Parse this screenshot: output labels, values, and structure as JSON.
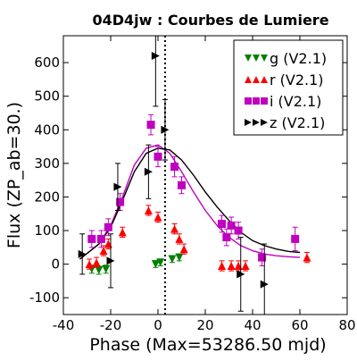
{
  "chart_data": {
    "type": "scatter",
    "title": "04D4jw : Courbes de Lumiere",
    "xlabel": "Phase (Max=53286.50 mjd)",
    "ylabel": "Flux (ZP_ab=30.)",
    "xlim": [
      -40,
      80
    ],
    "ylim": [
      -150,
      680
    ],
    "xticks": [
      -40,
      -20,
      0,
      20,
      40,
      60,
      80
    ],
    "yticks": [
      -100,
      0,
      100,
      200,
      300,
      400,
      500,
      600
    ],
    "xtick_labels": [
      "-40",
      "-20",
      "0",
      "20",
      "40",
      "60",
      "80"
    ],
    "ytick_labels": [
      "-100",
      "0",
      "100",
      "200",
      "300",
      "400",
      "500",
      "600"
    ],
    "grid": false,
    "legend_position": "top-right",
    "max_phase_line_x": 3,
    "series": [
      {
        "name": "g (V2.1)",
        "color": "#008000",
        "marker": "triangle-down",
        "points": [
          {
            "x": -28,
            "y": -15,
            "err": 12
          },
          {
            "x": -25,
            "y": -18,
            "err": 12
          },
          {
            "x": -22,
            "y": -15,
            "err": 12
          },
          {
            "x": -1,
            "y": 0,
            "err": 10
          },
          {
            "x": 1,
            "y": 5,
            "err": 10
          },
          {
            "x": 6,
            "y": 15,
            "err": 10
          },
          {
            "x": 9,
            "y": 20,
            "err": 10
          }
        ]
      },
      {
        "name": "r (V2.1)",
        "color": "#ff0000",
        "marker": "triangle-up",
        "points": [
          {
            "x": -29,
            "y": 0,
            "err": 15
          },
          {
            "x": -26,
            "y": 5,
            "err": 15
          },
          {
            "x": -23,
            "y": 40,
            "err": 15
          },
          {
            "x": -21,
            "y": 60,
            "err": 15
          },
          {
            "x": -15,
            "y": 95,
            "err": 15
          },
          {
            "x": -4,
            "y": 160,
            "err": 15
          },
          {
            "x": 0,
            "y": 140,
            "err": 15
          },
          {
            "x": 7,
            "y": 105,
            "err": 15
          },
          {
            "x": 9,
            "y": 75,
            "err": 15
          },
          {
            "x": 11,
            "y": 45,
            "err": 15
          },
          {
            "x": 27,
            "y": -5,
            "err": 15
          },
          {
            "x": 31,
            "y": -5,
            "err": 15
          },
          {
            "x": 34,
            "y": -5,
            "err": 15
          },
          {
            "x": 37,
            "y": -5,
            "err": 15
          },
          {
            "x": 63,
            "y": 20,
            "err": 15
          }
        ]
      },
      {
        "name": "i (V2.1)",
        "color": "#bf00bf",
        "marker": "square",
        "points": [
          {
            "x": -28,
            "y": 75,
            "err": 25
          },
          {
            "x": -24,
            "y": 75,
            "err": 25
          },
          {
            "x": -21,
            "y": 110,
            "err": 25
          },
          {
            "x": -16,
            "y": 185,
            "err": 25
          },
          {
            "x": -3,
            "y": 415,
            "err": 30
          },
          {
            "x": 0,
            "y": 320,
            "err": 30
          },
          {
            "x": 7,
            "y": 290,
            "err": 30
          },
          {
            "x": 10,
            "y": 235,
            "err": 25
          },
          {
            "x": 27,
            "y": 120,
            "err": 25
          },
          {
            "x": 29,
            "y": 80,
            "err": 25
          },
          {
            "x": 31,
            "y": 115,
            "err": 25
          },
          {
            "x": 34,
            "y": 100,
            "err": 25
          },
          {
            "x": 44,
            "y": 20,
            "err": 25
          },
          {
            "x": 58,
            "y": 75,
            "err": 35
          }
        ]
      },
      {
        "name": "z (V2.1)",
        "color": "#000000",
        "marker": "triangle-right",
        "points": [
          {
            "x": -32,
            "y": 30,
            "err": 60
          },
          {
            "x": -20,
            "y": 10,
            "err": 80
          },
          {
            "x": -17,
            "y": 230,
            "err": 70
          },
          {
            "x": -4,
            "y": 275,
            "err": 80
          },
          {
            "x": -1,
            "y": 620,
            "err": 150
          },
          {
            "x": 3,
            "y": 400,
            "err": 90
          },
          {
            "x": 35,
            "y": -30,
            "err": 110
          },
          {
            "x": 45,
            "y": -60,
            "err": 120
          }
        ]
      }
    ],
    "fit_curves": [
      {
        "band": "i",
        "color": "#bf00bf",
        "points": [
          [
            -33,
            15
          ],
          [
            -25,
            60
          ],
          [
            -20,
            115
          ],
          [
            -15,
            200
          ],
          [
            -10,
            295
          ],
          [
            -5,
            345
          ],
          [
            0,
            355
          ],
          [
            5,
            330
          ],
          [
            10,
            275
          ],
          [
            15,
            215
          ],
          [
            20,
            160
          ],
          [
            25,
            115
          ],
          [
            30,
            80
          ],
          [
            35,
            55
          ],
          [
            40,
            40
          ],
          [
            45,
            30
          ],
          [
            50,
            25
          ],
          [
            55,
            22
          ],
          [
            60,
            20
          ]
        ]
      },
      {
        "band": "z",
        "color": "#000000",
        "points": [
          [
            -33,
            15
          ],
          [
            -25,
            60
          ],
          [
            -20,
            110
          ],
          [
            -15,
            190
          ],
          [
            -10,
            275
          ],
          [
            -5,
            330
          ],
          [
            0,
            345
          ],
          [
            5,
            340
          ],
          [
            10,
            310
          ],
          [
            15,
            265
          ],
          [
            20,
            215
          ],
          [
            25,
            170
          ],
          [
            30,
            130
          ],
          [
            35,
            95
          ],
          [
            40,
            70
          ],
          [
            45,
            55
          ],
          [
            50,
            45
          ],
          [
            55,
            38
          ],
          [
            60,
            35
          ]
        ]
      }
    ]
  }
}
